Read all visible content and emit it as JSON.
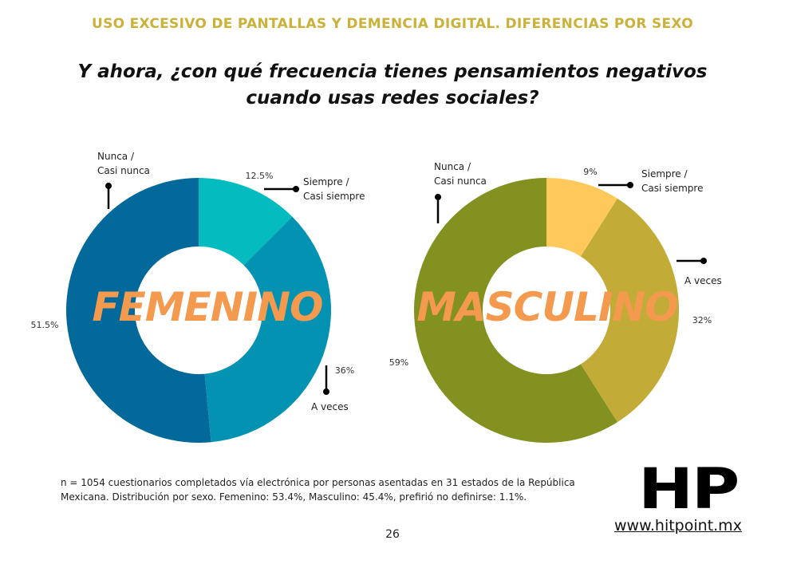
{
  "header": {
    "title": "USO EXCESIVO DE PANTALLAS Y DEMENCIA DIGITAL. DIFERENCIAS POR SEXO"
  },
  "question": {
    "line1": "Y ahora, ¿con qué frecuencia tienes pensamientos negativos",
    "line2": "cuando usas redes sociales?"
  },
  "chart_data": [
    {
      "type": "pie",
      "overlay_label": "FEMENINO",
      "categories": [
        "Siempre / Casi siempre",
        "A veces",
        "Nunca / Casi nunca"
      ],
      "category_lines": [
        [
          "Siempre /",
          "Casi siempre"
        ],
        [
          "A veces"
        ],
        [
          "Nunca /",
          "Casi nunca"
        ]
      ],
      "values": [
        12.5,
        36,
        51.5
      ],
      "value_labels": [
        "12.5%",
        "36%",
        "51.5%"
      ],
      "colors": [
        "#04bbbf",
        "#0492b2",
        "#03699b"
      ]
    },
    {
      "type": "pie",
      "overlay_label": "MASCULINO",
      "categories": [
        "Siempre / Casi siempre",
        "A veces",
        "Nunca / Casi nunca"
      ],
      "category_lines": [
        [
          "Siempre /",
          "Casi siempre"
        ],
        [
          "A veces"
        ],
        [
          "Nunca /",
          "Casi nunca"
        ]
      ],
      "values": [
        9,
        32,
        59
      ],
      "value_labels": [
        "9%",
        "32%",
        "59%"
      ],
      "colors": [
        "#fec85a",
        "#c2ab36",
        "#829120"
      ]
    }
  ],
  "footnote": {
    "line1": "n = 1054 cuestionarios completados vía electrónica por personas asentadas en 31 estados de la República",
    "line2": "Mexicana. Distribución por sexo. Femenino: 53.4%, Masculino: 45.4%, prefirió no definirse: 1.1%."
  },
  "page_number": "26",
  "brand": {
    "logo_text": "HP",
    "website": "www.hitpoint.mx"
  }
}
